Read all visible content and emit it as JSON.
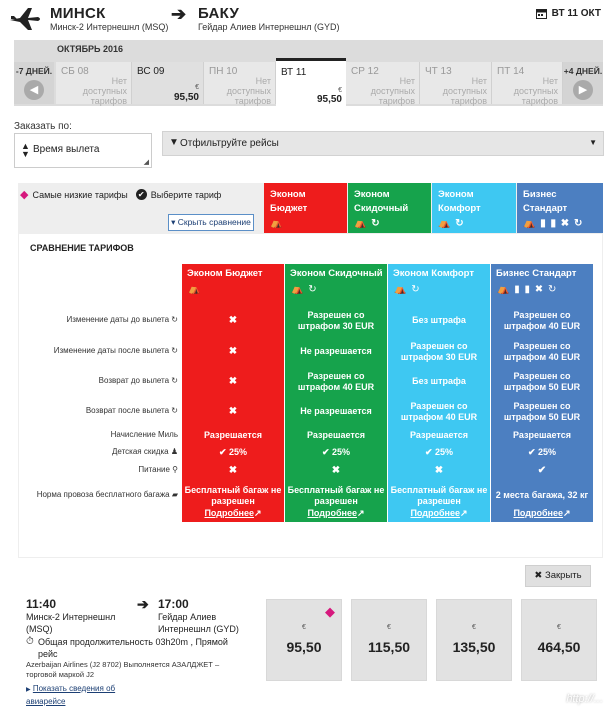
{
  "route": {
    "origin_city": "МИНСК",
    "origin_airport": "Минск-2 Интернешнл (MSQ)",
    "dest_city": "БАКУ",
    "dest_airport": "Гейдар Алиев Интернешнл (GYD)",
    "selected_date": "ВТ 11 ОКТ"
  },
  "calendar": {
    "month": "ОКТЯБРЬ 2016",
    "prev_label": "-7 ДНЕЙ.",
    "next_label": "+4 ДНЕЙ.",
    "currency": "€",
    "days": [
      {
        "date": "СБ 08",
        "price": "",
        "na": "Нет\nдоступных\nтарифов"
      },
      {
        "date": "ВС 09",
        "price": "95,50",
        "na": ""
      },
      {
        "date": "ПН 10",
        "price": "",
        "na": "Нет\nдоступных\nтарифов"
      },
      {
        "date": "ВТ 11",
        "price": "95,50",
        "na": ""
      },
      {
        "date": "СР 12",
        "price": "",
        "na": "Нет\nдоступных\nтарифов"
      },
      {
        "date": "ЧТ 13",
        "price": "",
        "na": "Нет\nдоступных\nтарифов"
      },
      {
        "date": "ПТ 14",
        "price": "",
        "na": "Нет\nдоступных\nтарифов"
      }
    ]
  },
  "sort": {
    "label": "Заказать по:",
    "value": "Время вылета"
  },
  "filter": {
    "label": "Отфильтруйте рейсы"
  },
  "legend": {
    "lowest": "Самые низкие тарифы",
    "choose": "Выберите тариф",
    "hide": "Скрыть сравнение"
  },
  "tariffs": [
    {
      "name": "Эконом Бюджет",
      "color": "#ee1c1c",
      "icons": "⛺"
    },
    {
      "name": "Эконом Скидочный",
      "color": "#16a34c",
      "icons": "⛺ ↻"
    },
    {
      "name": "Эконом Комфорт",
      "color": "#3ec8f2",
      "icons": "⛺ ↻"
    },
    {
      "name": "Бизнес Стандарт",
      "color": "#4c7fc1",
      "icons": "⛺ ▮ ▮ ✖ ↻"
    }
  ],
  "comparison": {
    "title": "СРАВНЕНИЕ ТАРИФОВ",
    "rows": [
      "Изменение даты до вылета ↻",
      "Изменение даты после вылета ↻",
      "Возврат до вылета ↻",
      "Возврат после вылета ↻",
      "Начисление Миль",
      "Детская скидка ♟",
      "Питание ⚲",
      "Норма провоза бесплатного багажа ▰"
    ],
    "values": [
      [
        "✖",
        "✖",
        "✖",
        "✖",
        "Разрешается",
        "✔ 25%",
        "✖",
        "Бесплатный багаж не\nразрешен"
      ],
      [
        "Разрешен со\nштрафом 30 EUR",
        "Не разрешается",
        "Разрешен со\nштрафом 40 EUR",
        "Не разрешается",
        "Разрешается",
        "✔ 25%",
        "✖",
        "Бесплатный багаж не\nразрешен"
      ],
      [
        "Без штрафа",
        "Разрешен со\nштрафом 30 EUR",
        "Без штрафа",
        "Разрешен со\nштрафом 40 EUR",
        "Разрешается",
        "✔ 25%",
        "✖",
        "Бесплатный багаж не\nразрешен"
      ],
      [
        "Разрешен со\nштрафом 40 EUR",
        "Разрешен со\nштрафом 40 EUR",
        "Разрешен со\nштрафом 50 EUR",
        "Разрешен со\nштрафом 50 EUR",
        "Разрешается",
        "✔ 25%",
        "✔",
        "2 места багажа, 32 кг"
      ]
    ],
    "more_label": "Подробнее",
    "close_label": "Закрыть"
  },
  "flight": {
    "dep_time": "11:40",
    "arr_time": "17:00",
    "dep_airport": "Минск-2 Интернешнл\n(MSQ)",
    "arr_airport": "Гейдар Алиев\nИнтернешнл (GYD)",
    "duration": "Общая продолжительность 03h20m , Прямой\nрейс",
    "operator": "Azerbaijan Airlines (J2 8702) Выполняется АЗАЛДЖЕТ –\nторговой маркой J2",
    "details_link": "Показать сведения об\nавиарейсе",
    "prices": [
      "95,50",
      "115,50",
      "135,50",
      "464,50"
    ]
  },
  "watermark": "http://..."
}
